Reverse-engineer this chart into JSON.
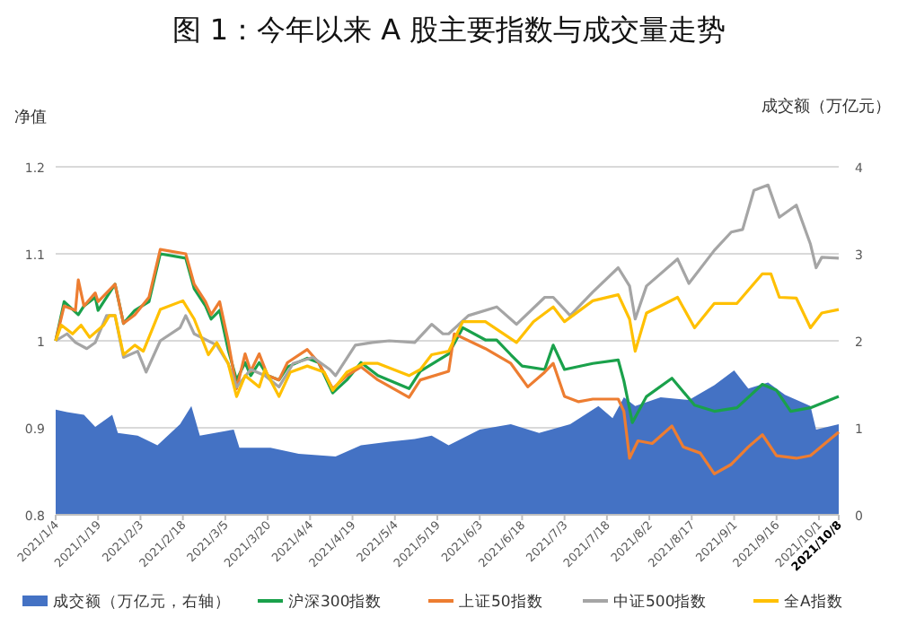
{
  "chart_data": {
    "type": "line",
    "title": "图 1：今年以来 A 股主要指数与成交量走势",
    "ylabel": "净值",
    "y2label": "成交额（万亿元）",
    "xlim": [
      "2021-01-04",
      "2021-10-08"
    ],
    "xticks": [
      {
        "value": "2021-01-04",
        "label": "2021/1/4"
      },
      {
        "value": "2021-01-19",
        "label": "2021/1/19"
      },
      {
        "value": "2021-02-03",
        "label": "2021/2/3"
      },
      {
        "value": "2021-02-18",
        "label": "2021/2/18"
      },
      {
        "value": "2021-03-05",
        "label": "2021/3/5"
      },
      {
        "value": "2021-03-20",
        "label": "2021/3/20"
      },
      {
        "value": "2021-04-04",
        "label": "2021/4/4"
      },
      {
        "value": "2021-04-19",
        "label": "2021/4/19"
      },
      {
        "value": "2021-05-04",
        "label": "2021/5/4"
      },
      {
        "value": "2021-05-19",
        "label": "2021/5/19"
      },
      {
        "value": "2021-06-03",
        "label": "2021/6/3"
      },
      {
        "value": "2021-06-18",
        "label": "2021/6/18"
      },
      {
        "value": "2021-07-03",
        "label": "2021/7/3"
      },
      {
        "value": "2021-07-18",
        "label": "2021/7/18"
      },
      {
        "value": "2021-08-02",
        "label": "2021/8/2"
      },
      {
        "value": "2021-08-17",
        "label": "2021/8/17"
      },
      {
        "value": "2021-09-01",
        "label": "2021/9/1"
      },
      {
        "value": "2021-09-16",
        "label": "2021/9/16"
      },
      {
        "value": "2021-10-01",
        "label": "2021/10/1"
      },
      {
        "value": "2021-10-08",
        "label": "2021/10/8"
      }
    ],
    "ylim": [
      0.8,
      1.2
    ],
    "yticks": [
      0.8,
      0.9,
      1,
      1.1,
      1.2
    ],
    "y2lim": [
      0,
      4
    ],
    "y2ticks": [
      0,
      1,
      2,
      3,
      4
    ],
    "grid": "y",
    "legend": "bottom",
    "marker": "none",
    "line_style": "solid",
    "series": [
      {
        "name": "成交额（万亿元，右轴）",
        "type": "area",
        "axis": "y2",
        "color": "#4472c4",
        "x": [
          "2021-01-04",
          "2021-01-08",
          "2021-01-14",
          "2021-01-18",
          "2021-01-24",
          "2021-01-26",
          "2021-02-02",
          "2021-02-09",
          "2021-02-17",
          "2021-02-21",
          "2021-02-24",
          "2021-03-08",
          "2021-03-10",
          "2021-03-21",
          "2021-03-31",
          "2021-04-13",
          "2021-04-22",
          "2021-05-02",
          "2021-05-11",
          "2021-05-17",
          "2021-05-23",
          "2021-06-03",
          "2021-06-14",
          "2021-06-24",
          "2021-07-05",
          "2021-07-15",
          "2021-07-20",
          "2021-07-24",
          "2021-07-28",
          "2021-08-06",
          "2021-08-16",
          "2021-08-25",
          "2021-09-01",
          "2021-09-06",
          "2021-09-13",
          "2021-09-19",
          "2021-09-28",
          "2021-09-30",
          "2021-10-08"
        ],
        "values": [
          1.21,
          1.18,
          1.15,
          1.01,
          1.15,
          0.94,
          0.91,
          0.8,
          1.04,
          1.25,
          0.91,
          0.98,
          0.77,
          0.77,
          0.7,
          0.67,
          0.8,
          0.84,
          0.87,
          0.91,
          0.8,
          0.98,
          1.04,
          0.94,
          1.04,
          1.25,
          1.11,
          1.35,
          1.25,
          1.35,
          1.32,
          1.49,
          1.66,
          1.45,
          1.52,
          1.38,
          1.25,
          0.98,
          1.04
        ]
      },
      {
        "name": "沪深300指数",
        "color": "#1aa14b",
        "x": [
          "2021-01-04",
          "2021-01-07",
          "2021-01-12",
          "2021-01-14",
          "2021-01-18",
          "2021-01-19",
          "2021-01-25",
          "2021-01-28",
          "2021-02-01",
          "2021-02-06",
          "2021-02-10",
          "2021-02-19",
          "2021-02-22",
          "2021-02-26",
          "2021-02-28",
          "2021-03-03",
          "2021-03-06",
          "2021-03-09",
          "2021-03-12",
          "2021-03-14",
          "2021-03-17",
          "2021-03-20",
          "2021-03-24",
          "2021-03-27",
          "2021-04-03",
          "2021-04-07",
          "2021-04-12",
          "2021-04-17",
          "2021-04-22",
          "2021-04-28",
          "2021-05-09",
          "2021-05-13",
          "2021-05-23",
          "2021-05-28",
          "2021-06-05",
          "2021-06-09",
          "2021-06-14",
          "2021-06-18",
          "2021-06-26",
          "2021-06-29",
          "2021-07-03",
          "2021-07-13",
          "2021-07-22",
          "2021-07-24",
          "2021-07-27",
          "2021-08-01",
          "2021-08-10",
          "2021-08-18",
          "2021-08-25",
          "2021-09-02",
          "2021-09-11",
          "2021-09-16",
          "2021-09-21",
          "2021-09-28",
          "2021-10-08"
        ],
        "values": [
          1.0,
          1.045,
          1.03,
          1.04,
          1.05,
          1.035,
          1.065,
          1.02,
          1.035,
          1.045,
          1.1,
          1.095,
          1.06,
          1.04,
          1.025,
          1.035,
          0.99,
          0.955,
          0.975,
          0.96,
          0.975,
          0.96,
          0.955,
          0.97,
          0.98,
          0.975,
          0.94,
          0.955,
          0.975,
          0.96,
          0.945,
          0.965,
          0.985,
          1.015,
          1.001,
          1.001,
          0.984,
          0.971,
          0.967,
          0.995,
          0.967,
          0.974,
          0.978,
          0.954,
          0.906,
          0.936,
          0.957,
          0.926,
          0.919,
          0.923,
          0.95,
          0.943,
          0.919,
          0.923,
          0.936
        ]
      },
      {
        "name": "上证50指数",
        "color": "#ed7d31",
        "x": [
          "2021-01-04",
          "2021-01-07",
          "2021-01-11",
          "2021-01-12",
          "2021-01-14",
          "2021-01-18",
          "2021-01-19",
          "2021-01-25",
          "2021-01-28",
          "2021-02-01",
          "2021-02-06",
          "2021-02-10",
          "2021-02-19",
          "2021-02-22",
          "2021-02-26",
          "2021-02-28",
          "2021-03-03",
          "2021-03-06",
          "2021-03-09",
          "2021-03-12",
          "2021-03-14",
          "2021-03-17",
          "2021-03-20",
          "2021-03-24",
          "2021-03-27",
          "2021-04-03",
          "2021-04-07",
          "2021-04-12",
          "2021-04-17",
          "2021-04-22",
          "2021-04-28",
          "2021-05-09",
          "2021-05-13",
          "2021-05-23",
          "2021-05-25",
          "2021-06-05",
          "2021-06-14",
          "2021-06-20",
          "2021-06-26",
          "2021-06-29",
          "2021-07-03",
          "2021-07-08",
          "2021-07-13",
          "2021-07-22",
          "2021-07-24",
          "2021-07-26",
          "2021-07-29",
          "2021-08-03",
          "2021-08-10",
          "2021-08-14",
          "2021-08-20",
          "2021-08-25",
          "2021-08-31",
          "2021-09-06",
          "2021-09-11",
          "2021-09-16",
          "2021-09-23",
          "2021-09-28",
          "2021-10-08"
        ],
        "values": [
          1.0,
          1.04,
          1.035,
          1.07,
          1.04,
          1.055,
          1.045,
          1.065,
          1.02,
          1.03,
          1.05,
          1.105,
          1.1,
          1.065,
          1.045,
          1.03,
          1.045,
          1.0,
          0.945,
          0.985,
          0.965,
          0.985,
          0.96,
          0.955,
          0.975,
          0.99,
          0.975,
          0.945,
          0.96,
          0.97,
          0.955,
          0.935,
          0.955,
          0.965,
          1.008,
          0.991,
          0.974,
          0.947,
          0.964,
          0.974,
          0.936,
          0.93,
          0.933,
          0.933,
          0.919,
          0.865,
          0.885,
          0.882,
          0.902,
          0.878,
          0.871,
          0.847,
          0.858,
          0.878,
          0.892,
          0.868,
          0.865,
          0.868,
          0.895
        ]
      },
      {
        "name": "中证500指数",
        "color": "#a5a5a5",
        "x": [
          "2021-01-04",
          "2021-01-08",
          "2021-01-11",
          "2021-01-15",
          "2021-01-18",
          "2021-01-22",
          "2021-01-25",
          "2021-01-28",
          "2021-02-02",
          "2021-02-05",
          "2021-02-10",
          "2021-02-17",
          "2021-02-19",
          "2021-02-22",
          "2021-03-02",
          "2021-03-06",
          "2021-03-09",
          "2021-03-14",
          "2021-03-19",
          "2021-03-24",
          "2021-03-29",
          "2021-04-05",
          "2021-04-11",
          "2021-04-13",
          "2021-04-20",
          "2021-04-26",
          "2021-05-02",
          "2021-05-11",
          "2021-05-17",
          "2021-05-21",
          "2021-05-23",
          "2021-05-30",
          "2021-06-09",
          "2021-06-16",
          "2021-06-26",
          "2021-06-29",
          "2021-07-05",
          "2021-07-13",
          "2021-07-22",
          "2021-07-26",
          "2021-07-28",
          "2021-08-01",
          "2021-08-12",
          "2021-08-16",
          "2021-08-25",
          "2021-08-31",
          "2021-09-04",
          "2021-09-08",
          "2021-09-13",
          "2021-09-17",
          "2021-09-23",
          "2021-09-28",
          "2021-09-30",
          "2021-10-02",
          "2021-10-08"
        ],
        "values": [
          1.0,
          1.008,
          0.998,
          0.991,
          0.998,
          1.029,
          1.029,
          0.981,
          0.988,
          0.964,
          1.0,
          1.015,
          1.029,
          1.008,
          0.995,
          0.974,
          0.947,
          0.967,
          0.96,
          0.947,
          0.974,
          0.981,
          0.967,
          0.96,
          0.995,
          0.998,
          1.0,
          0.998,
          1.019,
          1.008,
          1.008,
          1.029,
          1.039,
          1.019,
          1.05,
          1.05,
          1.029,
          1.056,
          1.084,
          1.063,
          1.025,
          1.063,
          1.094,
          1.066,
          1.104,
          1.125,
          1.128,
          1.173,
          1.179,
          1.142,
          1.156,
          1.111,
          1.084,
          1.096,
          1.095
        ]
      },
      {
        "name": "全A指数",
        "color": "#ffc000",
        "x": [
          "2021-01-04",
          "2021-01-06",
          "2021-01-10",
          "2021-01-13",
          "2021-01-16",
          "2021-01-21",
          "2021-01-23",
          "2021-01-25",
          "2021-01-28",
          "2021-02-01",
          "2021-02-04",
          "2021-02-10",
          "2021-02-18",
          "2021-02-22",
          "2021-02-27",
          "2021-03-02",
          "2021-03-06",
          "2021-03-09",
          "2021-03-12",
          "2021-03-17",
          "2021-03-19",
          "2021-03-24",
          "2021-03-28",
          "2021-04-03",
          "2021-04-09",
          "2021-04-12",
          "2021-04-17",
          "2021-04-23",
          "2021-04-28",
          "2021-05-09",
          "2021-05-13",
          "2021-05-17",
          "2021-05-23",
          "2021-05-28",
          "2021-06-05",
          "2021-06-16",
          "2021-06-22",
          "2021-06-29",
          "2021-07-03",
          "2021-07-13",
          "2021-07-22",
          "2021-07-26",
          "2021-07-28",
          "2021-08-01",
          "2021-08-12",
          "2021-08-18",
          "2021-08-25",
          "2021-09-02",
          "2021-09-11",
          "2021-09-14",
          "2021-09-17",
          "2021-09-23",
          "2021-09-28",
          "2021-10-02",
          "2021-10-08"
        ],
        "values": [
          1.0,
          1.018,
          1.008,
          1.018,
          1.004,
          1.018,
          1.029,
          1.029,
          0.984,
          0.995,
          0.988,
          1.036,
          1.046,
          1.025,
          0.984,
          0.998,
          0.974,
          0.936,
          0.96,
          0.947,
          0.967,
          0.936,
          0.964,
          0.971,
          0.964,
          0.943,
          0.964,
          0.974,
          0.974,
          0.96,
          0.967,
          0.984,
          0.988,
          1.022,
          1.022,
          0.998,
          1.022,
          1.039,
          1.022,
          1.046,
          1.053,
          1.025,
          0.988,
          1.032,
          1.05,
          1.015,
          1.043,
          1.043,
          1.077,
          1.077,
          1.05,
          1.049,
          1.015,
          1.032,
          1.036
        ]
      }
    ]
  }
}
